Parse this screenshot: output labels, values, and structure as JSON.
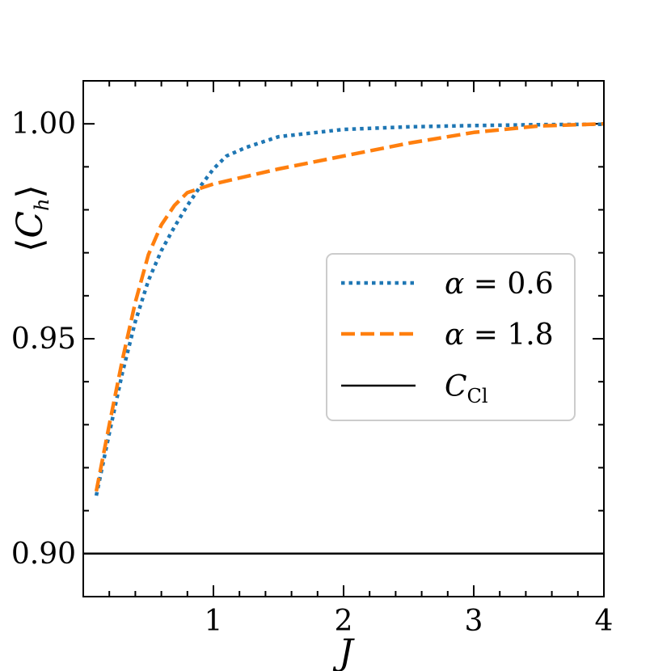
{
  "chart_data": {
    "type": "line",
    "title": "",
    "xlabel": "J",
    "ylabel": "⟨C_h⟩",
    "xlim": [
      0,
      4
    ],
    "ylim": [
      0.89,
      1.01
    ],
    "x_ticks": [
      "1",
      "2",
      "3",
      "4"
    ],
    "y_ticks": [
      "0.90",
      "0.95",
      "1.00"
    ],
    "grid": false,
    "legend_position": "center-right",
    "series": [
      {
        "name": "α = 0.6",
        "label_italic": "α",
        "label_rest": " = 0.6",
        "style": "dotted",
        "color": "#1f77b4",
        "x": [
          0.1,
          0.2,
          0.3,
          0.4,
          0.5,
          0.6,
          0.7,
          0.8,
          0.9,
          1.0,
          1.1,
          1.25,
          1.5,
          2.0,
          2.5,
          3.0,
          3.5,
          4.0
        ],
        "y": [
          0.9135,
          0.928,
          0.942,
          0.954,
          0.9635,
          0.9705,
          0.976,
          0.981,
          0.9855,
          0.9895,
          0.9925,
          0.9945,
          0.997,
          0.9987,
          0.9993,
          0.9996,
          0.9998,
          0.9999
        ]
      },
      {
        "name": "α = 1.8",
        "label_italic": "α",
        "label_rest": " = 1.8",
        "style": "dashed",
        "color": "#ff7f0e",
        "x": [
          0.1,
          0.2,
          0.3,
          0.4,
          0.5,
          0.6,
          0.7,
          0.8,
          0.9,
          1.0,
          1.5,
          2.0,
          2.5,
          3.0,
          3.5,
          4.0
        ],
        "y": [
          0.9145,
          0.93,
          0.945,
          0.9585,
          0.9695,
          0.9765,
          0.981,
          0.984,
          0.985,
          0.986,
          0.9895,
          0.9925,
          0.9955,
          0.998,
          0.9995,
          1.0
        ]
      },
      {
        "name": "C_Cl",
        "label_italic": "C",
        "label_sub": "Cl",
        "style": "solid",
        "color": "#000000",
        "x": [
          0,
          4
        ],
        "y": [
          0.9,
          0.9
        ]
      }
    ]
  }
}
